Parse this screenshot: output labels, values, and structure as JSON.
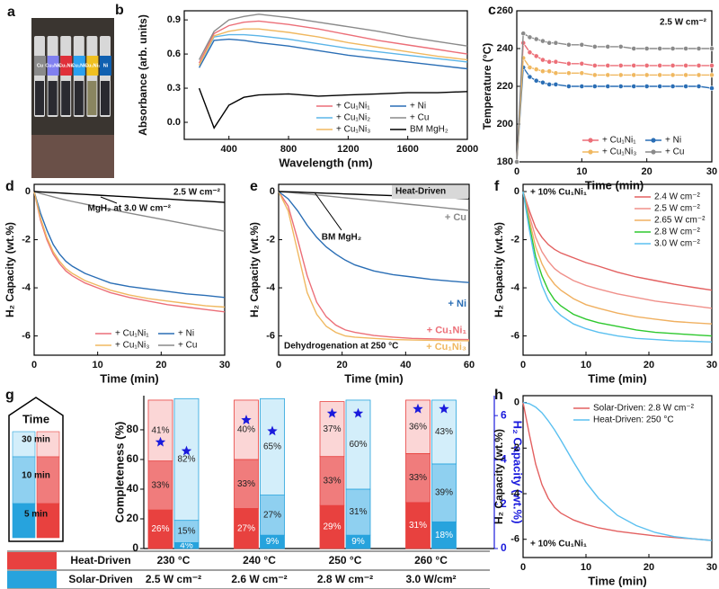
{
  "panel_labels": [
    "a",
    "b",
    "c",
    "d",
    "e",
    "f",
    "g",
    "h"
  ],
  "photo": {
    "labels": [
      "Cu",
      "Cu₃Ni₁",
      "Cu₁Ni₁",
      "Cu₁Ni₂",
      "Cu₁Ni₃",
      "Ni"
    ],
    "colors": [
      "#8a8a8a",
      "#8080f0",
      "#e0303a",
      "#2aa0f0",
      "#f0c020",
      "#1060b0"
    ]
  },
  "chart_data": [
    {
      "type": "line",
      "xlabel": "Wavelength (nm)",
      "ylabel": "Absorbance (arb. units)",
      "x": [
        200,
        300,
        400,
        500,
        600,
        800,
        1000,
        1200,
        1400,
        1600,
        1800,
        2000
      ],
      "xlim": [
        100,
        2000
      ],
      "xticks": [
        400,
        800,
        1200,
        1600,
        2000
      ],
      "ylim": [
        -0.15,
        0.98
      ],
      "yticks": [
        {
          "value": 0,
          "label": "0.0"
        },
        0.3,
        0.6,
        0.9
      ],
      "legend": "lower right",
      "legend_columns": 2,
      "series": [
        {
          "name": "+ Cu₁Ni₁",
          "color": "#ec6f78",
          "values": [
            0.52,
            0.78,
            0.85,
            0.88,
            0.89,
            0.86,
            0.82,
            0.77,
            0.72,
            0.68,
            0.64,
            0.6
          ]
        },
        {
          "name": "+ Ni",
          "color": "#2a6eb5",
          "values": [
            0.48,
            0.72,
            0.73,
            0.72,
            0.7,
            0.67,
            0.63,
            0.59,
            0.56,
            0.53,
            0.5,
            0.47
          ]
        },
        {
          "name": "+ Cu₁Ni₂",
          "color": "#5bb5e8",
          "values": [
            0.5,
            0.75,
            0.77,
            0.77,
            0.76,
            0.73,
            0.69,
            0.65,
            0.62,
            0.59,
            0.56,
            0.53
          ]
        },
        {
          "name": "+ Cu",
          "color": "#8a8a8a",
          "values": [
            0.55,
            0.8,
            0.9,
            0.93,
            0.95,
            0.92,
            0.88,
            0.84,
            0.8,
            0.75,
            0.71,
            0.67
          ]
        },
        {
          "name": "+ Cu₁Ni₃",
          "color": "#f0b860",
          "values": [
            0.5,
            0.76,
            0.8,
            0.82,
            0.82,
            0.79,
            0.75,
            0.7,
            0.66,
            0.62,
            0.58,
            0.55
          ]
        },
        {
          "name": "BM MgH₂",
          "color": "#000000",
          "values": [
            0.3,
            -0.05,
            0.15,
            0.22,
            0.24,
            0.25,
            0.23,
            0.24,
            0.25,
            0.26,
            0.26,
            0.27
          ]
        }
      ]
    },
    {
      "type": "line",
      "xlabel": "Time (min)",
      "ylabel": "Temperature (°C)",
      "markers": true,
      "x": [
        0,
        1,
        2,
        3,
        4,
        5,
        6,
        8,
        10,
        12,
        14,
        16,
        18,
        20,
        22,
        24,
        26,
        28,
        30
      ],
      "xlim": [
        0,
        30
      ],
      "xticks": [
        0,
        10,
        20,
        30
      ],
      "ylim": [
        180,
        260
      ],
      "yticks": [
        180,
        200,
        220,
        240,
        260
      ],
      "legend": "lower right",
      "legend_columns": 2,
      "annotations": [
        "2.5 W cm⁻²"
      ],
      "series": [
        {
          "name": "+ Cu₁Ni₁",
          "color": "#ec6f78",
          "values": [
            180,
            243,
            238,
            236,
            234,
            233,
            233,
            232,
            232,
            231,
            231,
            231,
            231,
            231,
            231,
            231,
            231,
            231,
            231
          ]
        },
        {
          "name": "+ Ni",
          "color": "#2a6eb5",
          "values": [
            180,
            230,
            225,
            223,
            222,
            221,
            221,
            220,
            220,
            220,
            220,
            220,
            220,
            220,
            220,
            220,
            220,
            220,
            219
          ]
        },
        {
          "name": "+ Cu₁Ni₃",
          "color": "#f0b860",
          "values": [
            180,
            235,
            230,
            229,
            228,
            228,
            227,
            227,
            227,
            226,
            226,
            226,
            226,
            226,
            226,
            226,
            226,
            226,
            226
          ]
        },
        {
          "name": "+ Cu",
          "color": "#8a8a8a",
          "values": [
            180,
            248,
            246,
            245,
            244,
            243,
            243,
            242,
            242,
            241,
            241,
            241,
            240,
            240,
            240,
            240,
            240,
            240,
            240
          ]
        }
      ]
    },
    {
      "type": "line",
      "xlabel": "Time (min)",
      "ylabel": "H₂ Capacity (wt.%)",
      "x": [
        0,
        1,
        2,
        3,
        4,
        5,
        6,
        8,
        10,
        12,
        15,
        18,
        21,
        24,
        27,
        30
      ],
      "xlim": [
        0,
        30
      ],
      "xticks": [
        0,
        10,
        20,
        30
      ],
      "ylim": [
        -6.8,
        0.3
      ],
      "yticks": [
        0,
        -2,
        -4,
        -6
      ],
      "legend": "lower right",
      "legend_columns": 2,
      "annotations": [
        "2.5 W cm⁻²",
        "MgH₂ at 3.0 W cm⁻²"
      ],
      "series": [
        {
          "name": "+ Cu₁Ni₁",
          "color": "#ec6f78",
          "values": [
            0,
            -1.2,
            -2.0,
            -2.6,
            -3.0,
            -3.3,
            -3.5,
            -3.8,
            -4.0,
            -4.2,
            -4.4,
            -4.55,
            -4.7,
            -4.8,
            -4.9,
            -5.0
          ]
        },
        {
          "name": "+ Ni",
          "color": "#2a6eb5",
          "values": [
            0,
            -0.9,
            -1.6,
            -2.2,
            -2.6,
            -2.9,
            -3.1,
            -3.4,
            -3.6,
            -3.8,
            -3.95,
            -4.05,
            -4.15,
            -4.25,
            -4.32,
            -4.4
          ]
        },
        {
          "name": "+ Cu₁Ni₃",
          "color": "#f0b860",
          "values": [
            0,
            -1.1,
            -1.9,
            -2.5,
            -2.9,
            -3.2,
            -3.4,
            -3.7,
            -3.9,
            -4.1,
            -4.3,
            -4.45,
            -4.55,
            -4.65,
            -4.75,
            -4.8
          ]
        },
        {
          "name": "+ Cu",
          "color": "#8a8a8a",
          "values": [
            0,
            -0.08,
            -0.15,
            -0.22,
            -0.29,
            -0.35,
            -0.41,
            -0.52,
            -0.63,
            -0.74,
            -0.9,
            -1.05,
            -1.2,
            -1.35,
            -1.5,
            -1.65
          ]
        },
        {
          "color": "#000000",
          "values": [
            0,
            -0.015,
            -0.03,
            -0.045,
            -0.06,
            -0.075,
            -0.09,
            -0.12,
            -0.15,
            -0.18,
            -0.22,
            -0.27,
            -0.31,
            -0.36,
            -0.4,
            -0.45
          ]
        }
      ]
    },
    {
      "type": "line",
      "xlabel": "Time (min)",
      "ylabel": "H₂ Capacity (wt.%)",
      "x": [
        0,
        3,
        6,
        9,
        12,
        15,
        18,
        21,
        24,
        30,
        36,
        42,
        48,
        54,
        60
      ],
      "xlim": [
        0,
        60
      ],
      "xticks": [
        0,
        20,
        40,
        60
      ],
      "ylim": [
        -6.8,
        0.3
      ],
      "yticks": [
        0,
        -2,
        -4,
        -6
      ],
      "legend": "inline",
      "annotations": [
        "Heat-Driven",
        "BM MgH₂",
        "Dehydrogenation at 250 °C"
      ],
      "series": [
        {
          "name": "+ Cu₁Ni₁",
          "color": "#ec6f78",
          "values": [
            0,
            -0.6,
            -2.0,
            -3.5,
            -4.6,
            -5.2,
            -5.55,
            -5.75,
            -5.85,
            -5.98,
            -6.05,
            -6.1,
            -6.12,
            -6.14,
            -6.15
          ]
        },
        {
          "name": "+ Cu₁Ni₃",
          "color": "#f0b860",
          "values": [
            0,
            -0.8,
            -2.5,
            -4.2,
            -5.1,
            -5.6,
            -5.85,
            -6.0,
            -6.05,
            -6.1,
            -6.15,
            -6.17,
            -6.18,
            -6.19,
            -6.2
          ]
        },
        {
          "name": "+ Ni",
          "color": "#2a6eb5",
          "values": [
            0,
            -0.3,
            -0.8,
            -1.4,
            -1.9,
            -2.3,
            -2.6,
            -2.85,
            -3.05,
            -3.3,
            -3.45,
            -3.55,
            -3.65,
            -3.72,
            -3.78
          ]
        },
        {
          "name": "+ Cu",
          "color": "#8a8a8a",
          "values": [
            0,
            -0.03,
            -0.07,
            -0.1,
            -0.14,
            -0.18,
            -0.22,
            -0.26,
            -0.3,
            -0.38,
            -0.46,
            -0.54,
            -0.62,
            -0.7,
            -0.78
          ]
        },
        {
          "color": "#000000",
          "values": [
            0,
            -0.01,
            -0.02,
            -0.04,
            -0.05,
            -0.07,
            -0.08,
            -0.1,
            -0.11,
            -0.14,
            -0.17,
            -0.2,
            -0.23,
            -0.26,
            -0.3
          ]
        }
      ]
    },
    {
      "type": "line",
      "xlabel": "Time (min)",
      "ylabel": "H₂ Capacity (wt.%)",
      "x": [
        0,
        1,
        2,
        3,
        4,
        5,
        6,
        8,
        10,
        12,
        15,
        18,
        21,
        24,
        27,
        30
      ],
      "xlim": [
        0,
        30
      ],
      "xticks": [
        0,
        10,
        20,
        30
      ],
      "ylim": [
        -6.8,
        0.3
      ],
      "yticks": [
        0,
        -2,
        -4,
        -6
      ],
      "legend": "upper right",
      "legend_columns": 1,
      "annotations": [
        "+ 10% Cu₁Ni₁"
      ],
      "series": [
        {
          "name": "2.4 W cm⁻²",
          "color": "#e36060",
          "values": [
            0,
            -0.8,
            -1.5,
            -1.9,
            -2.2,
            -2.4,
            -2.55,
            -2.75,
            -2.95,
            -3.1,
            -3.35,
            -3.55,
            -3.7,
            -3.85,
            -3.98,
            -4.1
          ]
        },
        {
          "name": "2.5 W cm⁻²",
          "color": "#f0908a",
          "values": [
            0,
            -1.0,
            -1.9,
            -2.5,
            -2.9,
            -3.2,
            -3.4,
            -3.7,
            -3.9,
            -4.05,
            -4.25,
            -4.4,
            -4.55,
            -4.65,
            -4.75,
            -4.85
          ]
        },
        {
          "name": "2.65 W cm⁻²",
          "color": "#f0b060",
          "values": [
            0,
            -1.2,
            -2.3,
            -3.0,
            -3.5,
            -3.85,
            -4.1,
            -4.45,
            -4.7,
            -4.85,
            -5.05,
            -5.2,
            -5.3,
            -5.4,
            -5.45,
            -5.5
          ]
        },
        {
          "name": "2.8 W cm⁻²",
          "color": "#2ec82e",
          "values": [
            0,
            -1.4,
            -2.7,
            -3.5,
            -4.1,
            -4.5,
            -4.75,
            -5.1,
            -5.3,
            -5.45,
            -5.6,
            -5.75,
            -5.85,
            -5.9,
            -5.95,
            -6.0
          ]
        },
        {
          "name": "3.0 W cm⁻²",
          "color": "#5bc0f0",
          "values": [
            0,
            -1.6,
            -3.0,
            -3.9,
            -4.5,
            -4.9,
            -5.15,
            -5.5,
            -5.7,
            -5.85,
            -6.0,
            -6.1,
            -6.15,
            -6.2,
            -6.22,
            -6.25
          ]
        }
      ]
    },
    {
      "type": "stacked_bar",
      "ylabel": "Completeness (%)",
      "y2label": "H₂ Capacity (wt.%)",
      "ylim": [
        0,
        103
      ],
      "yticks": [
        0,
        20,
        40,
        60,
        80
      ],
      "y2lim": [
        0,
        6.9
      ],
      "y2ticks": [
        0,
        2,
        4,
        6
      ],
      "star_color": "#1a1adc",
      "time_legend": {
        "title": "Time",
        "labels": [
          "30 min",
          "10 min",
          "5 min"
        ]
      },
      "series": [
        {
          "name": "Heat-Driven",
          "color": "#e8413f",
          "segment_colors": [
            "#e8413f",
            "#f07c7c",
            "#fbd6d6"
          ],
          "conditions": [
            "230 °C",
            "240 °C",
            "250 °C",
            "260 °C"
          ],
          "segments": [
            [
              26,
              33,
              41
            ],
            [
              27,
              33,
              40
            ],
            [
              29,
              33,
              37
            ],
            [
              31,
              33,
              36
            ]
          ],
          "value_labels": [
            [
              "26%",
              "33%",
              "41%"
            ],
            [
              "27%",
              "33%",
              "40%"
            ],
            [
              "29%",
              "33%",
              "37%"
            ],
            [
              "31%",
              "33%",
              "36%"
            ]
          ],
          "capacity": [
            4.8,
            5.8,
            6.1,
            6.3
          ],
          "axis": "y2"
        },
        {
          "name": "Solar-Driven",
          "color": "#27a3dd",
          "segment_colors": [
            "#27a3dd",
            "#8fd0f0",
            "#d3eefa"
          ],
          "conditions": [
            "2.5 W cm⁻²",
            "2.6 W cm⁻²",
            "2.8 W cm⁻²",
            "3.0 W/cm²"
          ],
          "segments": [
            [
              4,
              15,
              82
            ],
            [
              9,
              27,
              65
            ],
            [
              9,
              31,
              60
            ],
            [
              18,
              39,
              43
            ]
          ],
          "value_labels": [
            [
              "4%",
              "15%",
              "82%"
            ],
            [
              "9%",
              "27%",
              "65%"
            ],
            [
              "9%",
              "31%",
              "60%"
            ],
            [
              "18%",
              "39%",
              "43%"
            ]
          ],
          "capacity": [
            4.4,
            5.3,
            6.1,
            6.3
          ],
          "axis": "y2"
        }
      ]
    },
    {
      "type": "line",
      "xlabel": "Time (min)",
      "ylabel": "H₂ Capacity (wt.%)",
      "x": [
        0,
        1,
        2,
        3,
        4,
        5,
        6,
        8,
        10,
        12,
        15,
        18,
        21,
        24,
        27,
        30
      ],
      "xlim": [
        0,
        30
      ],
      "xticks": [
        0,
        10,
        20,
        30
      ],
      "ylim": [
        -6.8,
        0.3
      ],
      "yticks": [
        0,
        -2,
        -4,
        -6
      ],
      "legend": "upper right",
      "legend_columns": 1,
      "annotations": [
        "+ 10% Cu₁Ni₁"
      ],
      "series": [
        {
          "name": "Solar-Driven: 2.8 W cm⁻²",
          "color": "#e36060",
          "values": [
            0,
            -1.4,
            -2.7,
            -3.6,
            -4.2,
            -4.6,
            -4.85,
            -5.15,
            -5.35,
            -5.5,
            -5.65,
            -5.75,
            -5.85,
            -5.92,
            -5.98,
            -6.05
          ]
        },
        {
          "name": "Heat-Driven: 250 °C",
          "color": "#5bc0f0",
          "values": [
            0,
            -0.05,
            -0.2,
            -0.45,
            -0.8,
            -1.2,
            -1.65,
            -2.6,
            -3.5,
            -4.2,
            -4.95,
            -5.4,
            -5.7,
            -5.88,
            -5.98,
            -6.05
          ]
        }
      ]
    }
  ]
}
